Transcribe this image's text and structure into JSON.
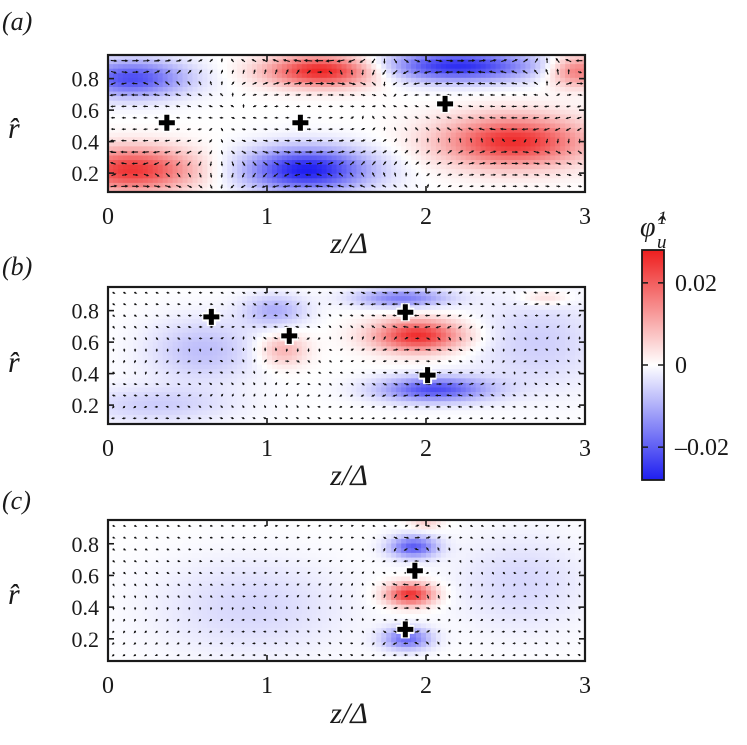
{
  "colorbar": {
    "label": "φ̂",
    "label_sup": "1",
    "label_sub": "u",
    "vmin": -0.028,
    "vmax": 0.028,
    "ticks": [
      0.02,
      0,
      -0.02
    ],
    "tick_labels": [
      "0.02",
      "0",
      "–0.02"
    ],
    "colors": {
      "low": "#1e1ef0",
      "mid": "#ffffff",
      "high": "#ee1e1e"
    }
  },
  "chart_data": [
    {
      "type": "heatmap",
      "panel_label": "(a)",
      "xlabel": "z/Δ",
      "ylabel": "r̂",
      "xlim": [
        0,
        3
      ],
      "ylim": [
        0.08,
        0.95
      ],
      "xticks": [
        0,
        1,
        2,
        3
      ],
      "xtick_labels": [
        "0",
        "1",
        "2",
        "3"
      ],
      "yticks": [
        0.2,
        0.4,
        0.6,
        0.8
      ],
      "ytick_labels": [
        "0.2",
        "0.4",
        "0.6",
        "0.8"
      ],
      "vector_scale": 1.0,
      "blobs": [
        {
          "x": 1.35,
          "y": 0.85,
          "v": 0.028,
          "sx": 0.35,
          "sy": 0.1
        },
        {
          "x": 1.25,
          "y": 0.22,
          "v": -0.028,
          "sx": 0.4,
          "sy": 0.14
        },
        {
          "x": 2.2,
          "y": 0.88,
          "v": -0.026,
          "sx": 0.5,
          "sy": 0.1
        },
        {
          "x": 2.55,
          "y": 0.4,
          "v": 0.026,
          "sx": 0.45,
          "sy": 0.16
        },
        {
          "x": 0.15,
          "y": 0.22,
          "v": 0.025,
          "sx": 0.4,
          "sy": 0.14
        },
        {
          "x": 0.15,
          "y": 0.8,
          "v": -0.022,
          "sx": 0.35,
          "sy": 0.12
        },
        {
          "x": 2.95,
          "y": 0.85,
          "v": 0.018,
          "sx": 0.18,
          "sy": 0.1
        }
      ],
      "markers": [
        {
          "z": 0.37,
          "r": 0.52
        },
        {
          "z": 1.21,
          "r": 0.52
        },
        {
          "z": 2.12,
          "r": 0.64
        }
      ]
    },
    {
      "type": "heatmap",
      "panel_label": "(b)",
      "xlabel": "z/Δ",
      "ylabel": "r̂",
      "xlim": [
        0,
        3
      ],
      "ylim": [
        0.08,
        0.95
      ],
      "xticks": [
        0,
        1,
        2,
        3
      ],
      "xtick_labels": [
        "0",
        "1",
        "2",
        "3"
      ],
      "yticks": [
        0.2,
        0.4,
        0.6,
        0.8
      ],
      "ytick_labels": [
        "0.2",
        "0.4",
        "0.6",
        "0.8"
      ],
      "vector_scale": 0.55,
      "blobs": [
        {
          "x": 1.95,
          "y": 0.64,
          "v": 0.026,
          "sx": 0.28,
          "sy": 0.1
        },
        {
          "x": 2.05,
          "y": 0.3,
          "v": -0.022,
          "sx": 0.35,
          "sy": 0.08
        },
        {
          "x": 1.85,
          "y": 0.88,
          "v": -0.016,
          "sx": 0.3,
          "sy": 0.06
        },
        {
          "x": 1.1,
          "y": 0.55,
          "v": 0.01,
          "sx": 0.15,
          "sy": 0.1
        },
        {
          "x": 1.05,
          "y": 0.8,
          "v": -0.01,
          "sx": 0.2,
          "sy": 0.1
        },
        {
          "x": 0.6,
          "y": 0.55,
          "v": -0.008,
          "sx": 0.35,
          "sy": 0.2
        },
        {
          "x": 0.3,
          "y": 0.2,
          "v": -0.006,
          "sx": 0.5,
          "sy": 0.12
        },
        {
          "x": 2.7,
          "y": 0.6,
          "v": -0.006,
          "sx": 0.4,
          "sy": 0.3
        },
        {
          "x": 2.75,
          "y": 0.88,
          "v": 0.006,
          "sx": 0.15,
          "sy": 0.05
        }
      ],
      "markers": [
        {
          "z": 0.65,
          "r": 0.76
        },
        {
          "z": 1.14,
          "r": 0.64
        },
        {
          "z": 1.87,
          "r": 0.79
        },
        {
          "z": 2.01,
          "r": 0.39
        }
      ]
    },
    {
      "type": "heatmap",
      "panel_label": "(c)",
      "xlabel": "z/Δ",
      "ylabel": "r̂",
      "xlim": [
        0,
        3
      ],
      "ylim": [
        0.06,
        0.95
      ],
      "xticks": [
        0,
        1,
        2,
        3
      ],
      "xtick_labels": [
        "0",
        "1",
        "2",
        "3"
      ],
      "yticks": [
        0.2,
        0.4,
        0.6,
        0.8
      ],
      "ytick_labels": [
        "0.2",
        "0.4",
        "0.6",
        "0.8"
      ],
      "vector_scale": 0.45,
      "blobs": [
        {
          "x": 1.9,
          "y": 0.48,
          "v": 0.026,
          "sx": 0.15,
          "sy": 0.07
        },
        {
          "x": 1.92,
          "y": 0.78,
          "v": -0.02,
          "sx": 0.15,
          "sy": 0.07
        },
        {
          "x": 1.88,
          "y": 0.2,
          "v": -0.018,
          "sx": 0.15,
          "sy": 0.07
        },
        {
          "x": 0.9,
          "y": 0.4,
          "v": -0.005,
          "sx": 0.6,
          "sy": 0.3
        },
        {
          "x": 2.6,
          "y": 0.55,
          "v": -0.005,
          "sx": 0.4,
          "sy": 0.3
        },
        {
          "x": 2.0,
          "y": 0.93,
          "v": 0.006,
          "sx": 0.1,
          "sy": 0.04
        }
      ],
      "markers": [
        {
          "z": 1.93,
          "r": 0.63
        },
        {
          "z": 1.87,
          "r": 0.26
        }
      ]
    }
  ]
}
